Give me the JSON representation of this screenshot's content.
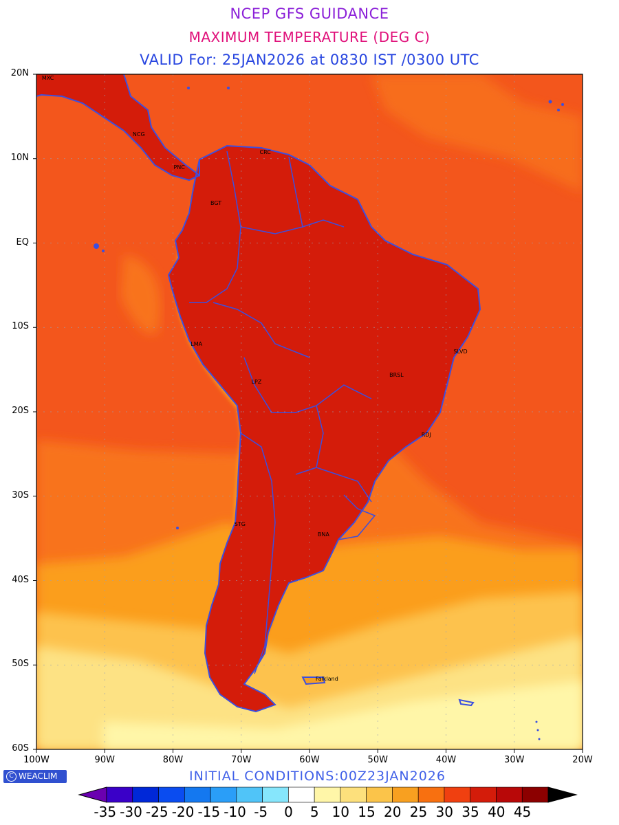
{
  "header": {
    "line1": "NCEP GFS GUIDANCE",
    "line2": "MAXIMUM TEMPERATURE (DEG C)",
    "line3": "VALID For: 25JAN2026 at 0830 IST /0300 UTC"
  },
  "footer": {
    "initial_conditions": "INITIAL CONDITIONS:00Z23JAN2026",
    "logo_text": "WEACLIM",
    "logo_symbol": "C"
  },
  "axes": {
    "y_labels": [
      "20N",
      "10N",
      "EQ",
      "10S",
      "20S",
      "30S",
      "40S",
      "50S",
      "60S"
    ],
    "x_labels": [
      "100W",
      "90W",
      "80W",
      "70W",
      "60W",
      "50W",
      "40W",
      "30W",
      "20W"
    ],
    "lat_range": [
      -60,
      20
    ],
    "lon_range": [
      -100,
      -20
    ]
  },
  "cities": [
    {
      "name": "MXC",
      "lon": -98.8,
      "lat": 19.5
    },
    {
      "name": "NCG",
      "lon": -85.5,
      "lat": 12.8
    },
    {
      "name": "CRC",
      "lon": -66.9,
      "lat": 10.7
    },
    {
      "name": "PNC",
      "lon": -79.5,
      "lat": 8.9
    },
    {
      "name": "BGT",
      "lon": -74.1,
      "lat": 4.7
    },
    {
      "name": "LMA",
      "lon": -77.0,
      "lat": -12.0
    },
    {
      "name": "SLVD",
      "lon": -38.5,
      "lat": -12.9
    },
    {
      "name": "BRSL",
      "lon": -47.9,
      "lat": -15.7
    },
    {
      "name": "LPZ",
      "lon": -68.1,
      "lat": -16.5
    },
    {
      "name": "RDJ",
      "lon": -43.2,
      "lat": -22.8
    },
    {
      "name": "STG",
      "lon": -70.6,
      "lat": -33.4
    },
    {
      "name": "BNA",
      "lon": -58.4,
      "lat": -34.6
    },
    {
      "name": "Falkland",
      "lon": -58.7,
      "lat": -51.7
    }
  ],
  "colorbar": {
    "labels": [
      "-35",
      "-30",
      "-25",
      "-20",
      "-15",
      "-10",
      "-5",
      "0",
      "5",
      "10",
      "15",
      "20",
      "25",
      "30",
      "35",
      "40",
      "45"
    ],
    "colors": [
      "#3a00c8",
      "#0028d8",
      "#0a4cf0",
      "#1478f0",
      "#2a9ef8",
      "#50c4f8",
      "#86e6fc",
      "#ffffff",
      "#fff6a8",
      "#fde07c",
      "#fbc44a",
      "#f8a020",
      "#f87010",
      "#f04010",
      "#d41c0a",
      "#b80808",
      "#8c0000"
    ],
    "under_color": "#6a00b0",
    "over_color": "#000000"
  },
  "map_colors": {
    "ocean_warm": "#f3561c",
    "ocean_mid": "#f8731a",
    "ocean_cool": "#fb9e1c",
    "ocean_cold": "#fdc24e",
    "ocean_coldest": "#fde284",
    "land_hot": "#c21208",
    "land_very_hot": "#a80606",
    "land_warm": "#de2a0c",
    "andes_cool": "#f8a020",
    "andes_cold": "#fde07c",
    "coast": "#3b4fe0"
  }
}
